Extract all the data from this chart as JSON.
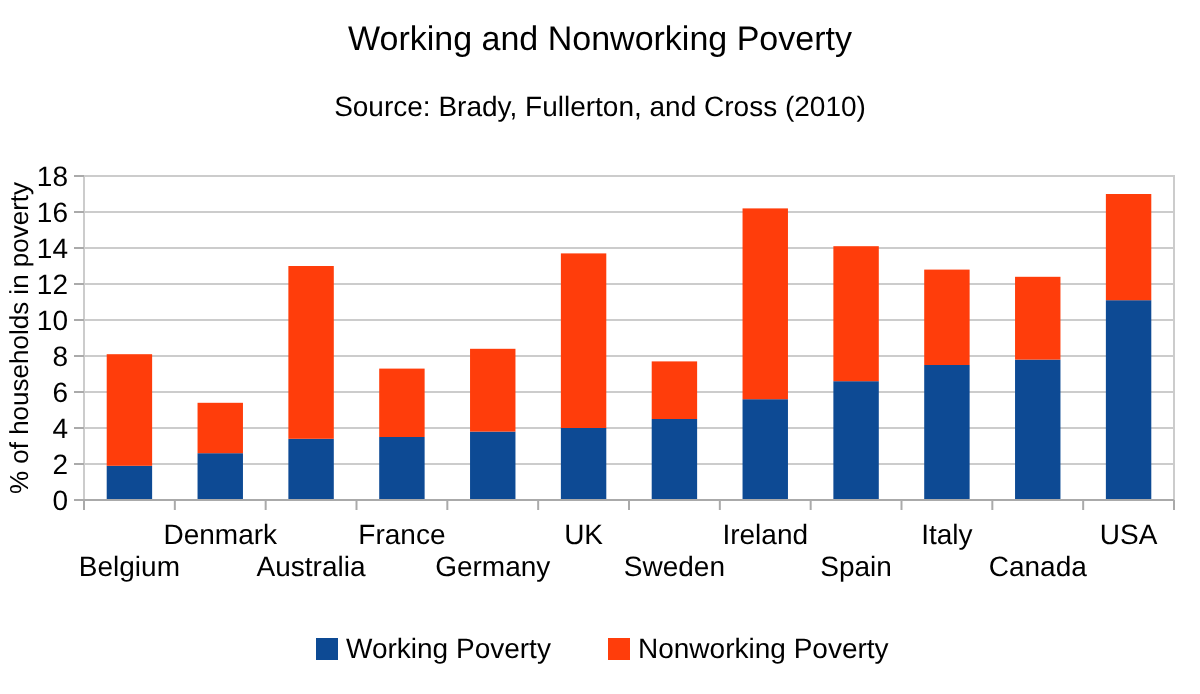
{
  "chart_data": {
    "type": "bar",
    "title": "Working and Nonworking Poverty",
    "subtitle": "Source: Brady, Fullerton, and Cross (2010)",
    "ylabel": "% of households in poverty",
    "categories": [
      "Belgium",
      "Denmark",
      "Australia",
      "France",
      "Germany",
      "UK",
      "Sweden",
      "Ireland",
      "Spain",
      "Italy",
      "Canada",
      "USA"
    ],
    "stacked": true,
    "series": [
      {
        "name": "Working Poverty",
        "color": "#0d4a94",
        "values": [
          1.9,
          2.6,
          3.4,
          3.5,
          3.8,
          4.0,
          4.5,
          5.6,
          6.6,
          7.5,
          7.8,
          11.1
        ]
      },
      {
        "name": "Nonworking Poverty",
        "color": "#ff3d0b",
        "values": [
          6.2,
          2.8,
          9.6,
          3.8,
          4.6,
          9.7,
          3.2,
          10.6,
          7.5,
          5.3,
          4.6,
          5.9
        ]
      }
    ],
    "ylim": [
      0,
      18
    ],
    "yticks": [
      0,
      2,
      4,
      6,
      8,
      10,
      12,
      14,
      16,
      18
    ],
    "grid": "y",
    "legend": "bottom"
  }
}
